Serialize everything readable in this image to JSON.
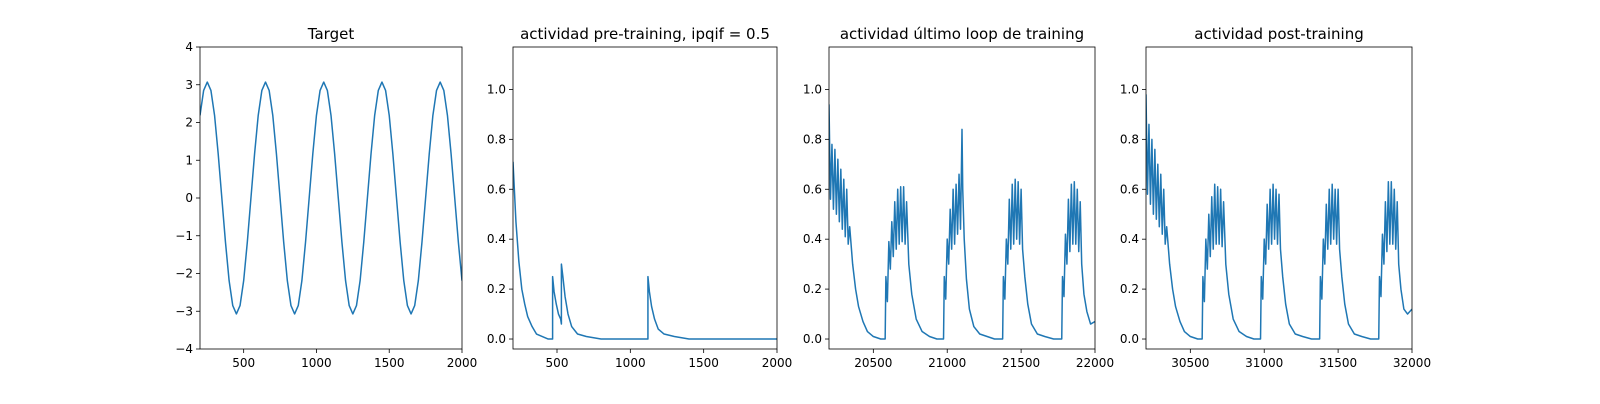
{
  "figure": {
    "line_color": "#1f77b4"
  },
  "chart_data": [
    {
      "type": "line",
      "title": "Target",
      "xlabel": "",
      "ylabel": "",
      "xlim": [
        200,
        2000
      ],
      "ylim": [
        -4,
        4
      ],
      "xticks": [
        500,
        1000,
        1500,
        2000
      ],
      "yticks": [
        -4,
        -3,
        -2,
        -1,
        0,
        1,
        2,
        3,
        4
      ],
      "ytick_decimals": 0,
      "grid": false,
      "series": [
        {
          "x": [
            200,
            225,
            250,
            275,
            300,
            325,
            350,
            375,
            400,
            425,
            450,
            475,
            500,
            525,
            550,
            575,
            600,
            625,
            650,
            675,
            700,
            725,
            750,
            775,
            800,
            825,
            850,
            875,
            900,
            925,
            950,
            975,
            1000,
            1025,
            1050,
            1075,
            1100,
            1125,
            1150,
            1175,
            1200,
            1225,
            1250,
            1275,
            1300,
            1325,
            1350,
            1375,
            1400,
            1425,
            1450,
            1475,
            1500,
            1525,
            1550,
            1575,
            1600,
            1625,
            1650,
            1675,
            1700,
            1725,
            1750,
            1775,
            1800,
            1825,
            1850,
            1875,
            1900,
            1925,
            1950,
            1975,
            2000
          ],
          "y": [
            2.19,
            2.85,
            3.07,
            2.85,
            2.19,
            1.17,
            0,
            -1.17,
            -2.19,
            -2.85,
            -3.07,
            -2.85,
            -2.19,
            -1.17,
            0,
            1.17,
            2.19,
            2.85,
            3.07,
            2.85,
            2.19,
            1.17,
            0,
            -1.17,
            -2.19,
            -2.85,
            -3.07,
            -2.85,
            -2.19,
            -1.17,
            0,
            1.17,
            2.19,
            2.85,
            3.07,
            2.85,
            2.19,
            1.17,
            0,
            -1.17,
            -2.19,
            -2.85,
            -3.07,
            -2.85,
            -2.19,
            -1.17,
            0,
            1.17,
            2.19,
            2.85,
            3.07,
            2.85,
            2.19,
            1.17,
            0,
            -1.17,
            -2.19,
            -2.85,
            -3.07,
            -2.85,
            -2.19,
            -1.17,
            0,
            1.17,
            2.19,
            2.85,
            3.07,
            2.85,
            2.19,
            1.17,
            0,
            -1.17,
            -2.19
          ]
        }
      ]
    },
    {
      "type": "line",
      "title": "actividad pre-training, ipqif = 0.5",
      "xlabel": "",
      "ylabel": "",
      "xlim": [
        200,
        2000
      ],
      "ylim": [
        -0.04,
        1.17
      ],
      "xticks": [
        500,
        1000,
        1500,
        2000
      ],
      "yticks": [
        0.0,
        0.2,
        0.4,
        0.6,
        0.8,
        1.0
      ],
      "ytick_decimals": 1,
      "grid": false,
      "series": [
        {
          "x": [
            200,
            220,
            240,
            260,
            280,
            300,
            330,
            360,
            400,
            440,
            470,
            470,
            480,
            495,
            510,
            525,
            530,
            530,
            540,
            555,
            575,
            600,
            640,
            700,
            800,
            900,
            1000,
            1110,
            1120,
            1120,
            1130,
            1145,
            1165,
            1190,
            1230,
            1300,
            1400,
            1500,
            1700,
            2000
          ],
          "y": [
            0.71,
            0.47,
            0.31,
            0.2,
            0.14,
            0.09,
            0.05,
            0.02,
            0.01,
            0,
            0,
            0.25,
            0.19,
            0.14,
            0.1,
            0.08,
            0.06,
            0.3,
            0.25,
            0.17,
            0.1,
            0.05,
            0.02,
            0.01,
            0,
            0,
            0,
            0,
            0,
            0.25,
            0.19,
            0.13,
            0.08,
            0.04,
            0.02,
            0.01,
            0,
            0,
            0,
            0
          ]
        }
      ]
    },
    {
      "type": "line",
      "title": "actividad último loop de training",
      "xlabel": "",
      "ylabel": "",
      "xlim": [
        20200,
        22000
      ],
      "ylim": [
        -0.04,
        1.17
      ],
      "xticks": [
        20500,
        21000,
        21500,
        22000
      ],
      "yticks": [
        0.0,
        0.2,
        0.4,
        0.6,
        0.8,
        1.0
      ],
      "ytick_decimals": 1,
      "grid": false,
      "series": [
        {
          "x": [
            20200,
            20210,
            20220,
            20230,
            20240,
            20250,
            20260,
            20270,
            20280,
            20290,
            20300,
            20310,
            20320,
            20330,
            20340,
            20360,
            20380,
            20400,
            20430,
            20460,
            20500,
            20550,
            20580,
            20585,
            20595,
            20605,
            20615,
            20625,
            20635,
            20645,
            20655,
            20665,
            20675,
            20685,
            20695,
            20705,
            20715,
            20725,
            20740,
            20760,
            20790,
            20830,
            20880,
            20930,
            20975,
            20980,
            20990,
            21000,
            21010,
            21020,
            21030,
            21040,
            21050,
            21060,
            21070,
            21080,
            21090,
            21100,
            21105,
            21115,
            21130,
            21150,
            21180,
            21220,
            21270,
            21320,
            21375,
            21380,
            21390,
            21400,
            21410,
            21420,
            21430,
            21440,
            21450,
            21460,
            21470,
            21480,
            21490,
            21500,
            21510,
            21525,
            21545,
            21570,
            21610,
            21660,
            21720,
            21775,
            21780,
            21790,
            21800,
            21810,
            21820,
            21830,
            21840,
            21850,
            21860,
            21870,
            21880,
            21890,
            21900,
            21910,
            21925,
            21945,
            21970,
            22000
          ],
          "y": [
            0.94,
            0.56,
            0.78,
            0.52,
            0.76,
            0.5,
            0.72,
            0.47,
            0.68,
            0.44,
            0.64,
            0.41,
            0.6,
            0.38,
            0.45,
            0.3,
            0.2,
            0.13,
            0.07,
            0.03,
            0.01,
            0,
            0,
            0.25,
            0.15,
            0.39,
            0.28,
            0.47,
            0.33,
            0.55,
            0.36,
            0.6,
            0.38,
            0.61,
            0.39,
            0.61,
            0.38,
            0.55,
            0.3,
            0.18,
            0.08,
            0.03,
            0.01,
            0,
            0,
            0.25,
            0.16,
            0.4,
            0.3,
            0.52,
            0.36,
            0.6,
            0.38,
            0.62,
            0.42,
            0.66,
            0.44,
            0.84,
            0.6,
            0.4,
            0.24,
            0.12,
            0.05,
            0.02,
            0.01,
            0,
            0,
            0.25,
            0.16,
            0.4,
            0.3,
            0.56,
            0.36,
            0.62,
            0.38,
            0.64,
            0.4,
            0.63,
            0.38,
            0.6,
            0.36,
            0.25,
            0.14,
            0.06,
            0.02,
            0.01,
            0,
            0,
            0.25,
            0.17,
            0.42,
            0.3,
            0.56,
            0.35,
            0.62,
            0.38,
            0.63,
            0.38,
            0.6,
            0.35,
            0.55,
            0.3,
            0.18,
            0.11,
            0.06,
            0.07
          ]
        }
      ]
    },
    {
      "type": "line",
      "title": "actividad post-training",
      "xlabel": "",
      "ylabel": "",
      "xlim": [
        30200,
        32000
      ],
      "ylim": [
        -0.04,
        1.17
      ],
      "xticks": [
        30500,
        31000,
        31500,
        32000
      ],
      "yticks": [
        0.0,
        0.2,
        0.4,
        0.6,
        0.8,
        1.0
      ],
      "ytick_decimals": 1,
      "grid": false,
      "series": [
        {
          "x": [
            30200,
            30210,
            30220,
            30230,
            30240,
            30250,
            30260,
            30270,
            30280,
            30290,
            30300,
            30310,
            30320,
            30330,
            30340,
            30360,
            30380,
            30400,
            30430,
            30460,
            30500,
            30550,
            30580,
            30585,
            30595,
            30605,
            30615,
            30625,
            30635,
            30645,
            30655,
            30665,
            30675,
            30685,
            30695,
            30705,
            30715,
            30725,
            30740,
            30760,
            30790,
            30830,
            30880,
            30930,
            30975,
            30980,
            30990,
            31000,
            31010,
            31020,
            31030,
            31040,
            31050,
            31060,
            31070,
            31080,
            31090,
            31100,
            31110,
            31125,
            31145,
            31170,
            31210,
            31260,
            31320,
            31375,
            31380,
            31390,
            31400,
            31410,
            31420,
            31430,
            31440,
            31450,
            31460,
            31470,
            31480,
            31490,
            31500,
            31510,
            31525,
            31545,
            31570,
            31610,
            31660,
            31720,
            31775,
            31780,
            31790,
            31800,
            31810,
            31820,
            31830,
            31840,
            31850,
            31860,
            31870,
            31880,
            31890,
            31900,
            31910,
            31925,
            31945,
            31970,
            32000
          ],
          "y": [
            0.98,
            0.58,
            0.86,
            0.54,
            0.8,
            0.5,
            0.76,
            0.48,
            0.7,
            0.45,
            0.66,
            0.42,
            0.6,
            0.38,
            0.45,
            0.3,
            0.2,
            0.13,
            0.07,
            0.03,
            0.01,
            0,
            0,
            0.25,
            0.15,
            0.4,
            0.28,
            0.5,
            0.33,
            0.57,
            0.36,
            0.62,
            0.38,
            0.61,
            0.38,
            0.6,
            0.37,
            0.55,
            0.3,
            0.18,
            0.08,
            0.03,
            0.01,
            0,
            0,
            0.25,
            0.16,
            0.4,
            0.3,
            0.54,
            0.36,
            0.6,
            0.38,
            0.62,
            0.4,
            0.6,
            0.38,
            0.58,
            0.36,
            0.25,
            0.14,
            0.06,
            0.02,
            0.01,
            0,
            0,
            0.25,
            0.16,
            0.4,
            0.3,
            0.54,
            0.36,
            0.6,
            0.38,
            0.62,
            0.4,
            0.6,
            0.38,
            0.6,
            0.36,
            0.25,
            0.14,
            0.06,
            0.02,
            0.01,
            0,
            0,
            0.25,
            0.17,
            0.42,
            0.3,
            0.55,
            0.35,
            0.63,
            0.38,
            0.63,
            0.38,
            0.6,
            0.36,
            0.55,
            0.3,
            0.2,
            0.12,
            0.1,
            0.12
          ]
        }
      ]
    }
  ]
}
